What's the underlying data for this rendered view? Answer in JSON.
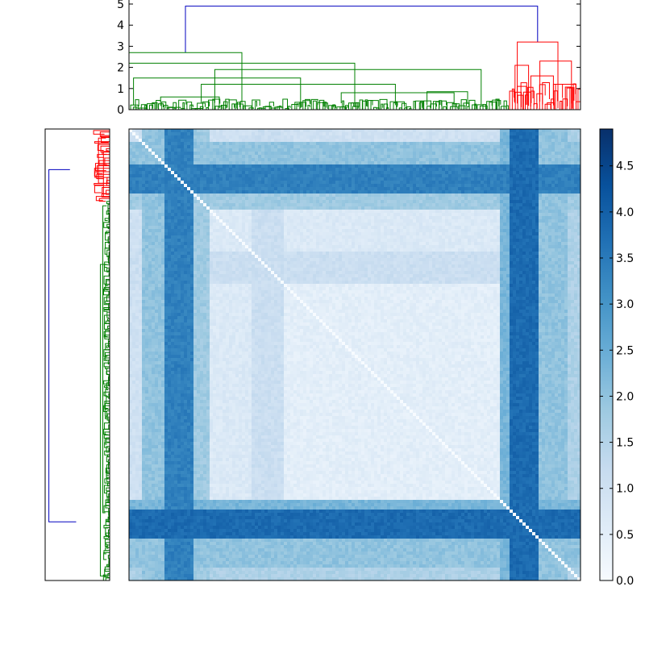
{
  "chart_data": [
    {
      "type": "dendrogram",
      "orientation": "top",
      "yticks": [
        "0",
        "1",
        "2",
        "3",
        "4",
        "5"
      ],
      "ylim": [
        0,
        5.2
      ],
      "colors": {
        "root": "#0000bf",
        "main_cluster": "#008000",
        "small_cluster": "#ff0000"
      },
      "root_height": 4.9,
      "clusters": [
        {
          "name": "",
          "color": "#008000",
          "span": [
            0.0,
            0.84
          ],
          "merge_height": 2.7
        },
        {
          "name": "",
          "color": "#ff0000",
          "span": [
            0.84,
            1.0
          ],
          "merge_height": 3.2
        }
      ],
      "links": [
        {
          "x": [
            0.0,
            0.25
          ],
          "h": 2.7,
          "color": "#008000"
        },
        {
          "x": [
            0.0,
            0.5
          ],
          "h": 2.2,
          "color": "#008000"
        },
        {
          "x": [
            0.19,
            0.78
          ],
          "h": 1.9,
          "color": "#008000"
        },
        {
          "x": [
            0.01,
            0.38
          ],
          "h": 1.5,
          "color": "#008000"
        },
        {
          "x": [
            0.16,
            0.59
          ],
          "h": 1.2,
          "color": "#008000"
        },
        {
          "x": [
            0.47,
            0.72
          ],
          "h": 0.8,
          "color": "#008000"
        },
        {
          "x": [
            0.07,
            0.2
          ],
          "h": 0.6,
          "color": "#008000"
        },
        {
          "x": [
            0.66,
            0.75
          ],
          "h": 0.85,
          "color": "#008000"
        },
        {
          "x": [
            0.86,
            0.95
          ],
          "h": 3.2,
          "color": "#ff0000"
        },
        {
          "x": [
            0.855,
            0.885
          ],
          "h": 2.1,
          "color": "#ff0000"
        },
        {
          "x": [
            0.91,
            0.98
          ],
          "h": 2.3,
          "color": "#ff0000"
        },
        {
          "x": [
            0.89,
            0.94
          ],
          "h": 1.6,
          "color": "#ff0000"
        },
        {
          "x": [
            0.94,
            0.99
          ],
          "h": 1.2,
          "color": "#ff0000"
        },
        {
          "x": [
            0.86,
            0.88
          ],
          "h": 1.1,
          "color": "#ff0000"
        }
      ]
    },
    {
      "type": "dendrogram",
      "orientation": "left",
      "colors": {
        "root": "#0000bf",
        "main_cluster": "#008000",
        "small_cluster": "#ff0000"
      },
      "root_height": 4.9,
      "clusters": [
        {
          "name": "",
          "color": "#ff0000",
          "span": [
            0.0,
            0.16
          ],
          "merge_height": 3.2
        },
        {
          "name": "",
          "color": "#008000",
          "span": [
            0.16,
            1.0
          ],
          "merge_height": 2.7
        }
      ]
    },
    {
      "type": "heatmap",
      "rows": 140,
      "cols": 140,
      "cmap": "Blues",
      "vmin": 0,
      "vmax": 4.9,
      "blocks": [
        {
          "range": [
            0.0,
            0.03
          ],
          "value": 1.0
        },
        {
          "range": [
            0.03,
            0.08
          ],
          "value": 2.0
        },
        {
          "range": [
            0.08,
            0.14
          ],
          "value": 3.4
        },
        {
          "range": [
            0.14,
            0.18
          ],
          "value": 1.8
        },
        {
          "range": [
            0.18,
            0.27
          ],
          "value": 0.7
        },
        {
          "range": [
            0.27,
            0.34
          ],
          "value": 1.1
        },
        {
          "range": [
            0.34,
            0.95
          ],
          "value": 0.5
        },
        {
          "range": [
            0.95,
            1.0
          ],
          "value": 1.3
        }
      ],
      "stripes_x": [
        {
          "range": [
            0.82,
            0.84
          ],
          "value": 2.3
        },
        {
          "range": [
            0.84,
            0.91
          ],
          "value": 3.8
        },
        {
          "range": [
            0.91,
            0.97
          ],
          "value": 2.0
        },
        {
          "range": [
            0.97,
            1.0
          ],
          "value": 1.6
        }
      ],
      "diagonal_value": 0.0
    },
    {
      "type": "colorbar",
      "cmap": "Blues",
      "range": [
        0,
        4.9
      ],
      "ticks": [
        "0.0",
        "0.5",
        "1.0",
        "1.5",
        "2.0",
        "2.5",
        "3.0",
        "3.5",
        "4.0",
        "4.5"
      ],
      "tick_values": [
        0,
        0.5,
        1.0,
        1.5,
        2.0,
        2.5,
        3.0,
        3.5,
        4.0,
        4.5
      ]
    }
  ]
}
